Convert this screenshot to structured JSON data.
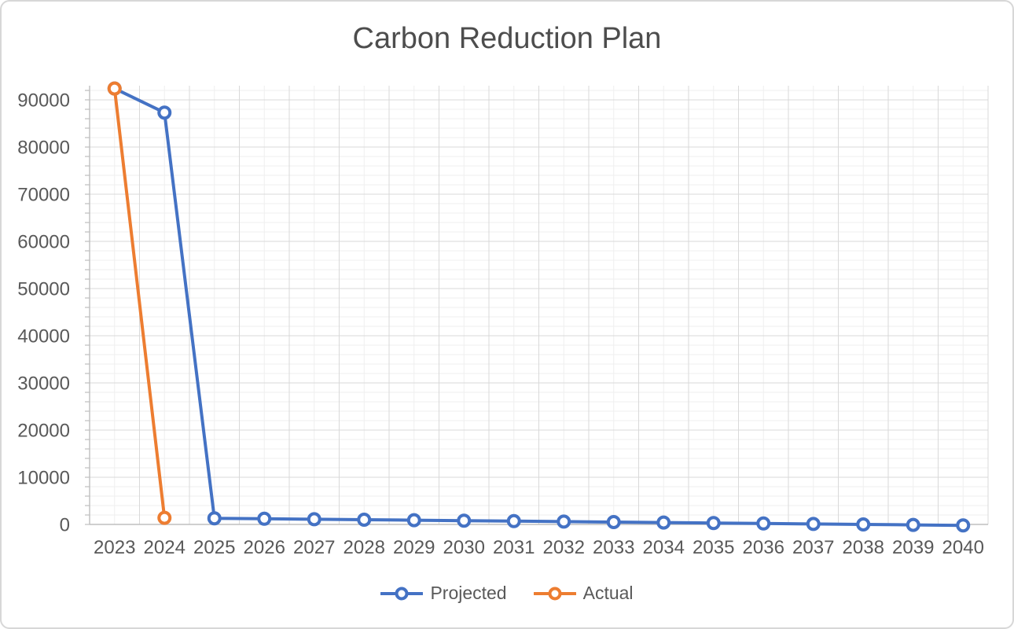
{
  "chart_data": {
    "type": "line",
    "title": "Carbon Reduction Plan",
    "categories": [
      "2023",
      "2024",
      "2025",
      "2026",
      "2027",
      "2028",
      "2029",
      "2030",
      "2031",
      "2032",
      "2033",
      "2034",
      "2035",
      "2036",
      "2037",
      "2038",
      "2039",
      "2040"
    ],
    "series": [
      {
        "name": "Projected",
        "color": "#4472C4",
        "values": [
          92400,
          87300,
          1300,
          1200,
          1100,
          1000,
          900,
          800,
          700,
          600,
          500,
          400,
          300,
          200,
          100,
          0,
          -100,
          -200
        ]
      },
      {
        "name": "Actual",
        "color": "#ED7D31",
        "values": [
          92400,
          1400,
          null,
          null,
          null,
          null,
          null,
          null,
          null,
          null,
          null,
          null,
          null,
          null,
          null,
          null,
          null,
          null
        ]
      }
    ],
    "xlabel": "",
    "ylabel": "",
    "ylim": [
      0,
      93000
    ],
    "y_tick_labels": [
      "0",
      "10000",
      "20000",
      "30000",
      "40000",
      "50000",
      "60000",
      "70000",
      "80000",
      "90000"
    ],
    "y_major_step": 10000,
    "y_minor_step": 2000,
    "grid": "major-and-minor",
    "legend_position": "bottom-center",
    "colors": {
      "axis_line": "#bfbfbf",
      "grid_major": "#d9d9d9",
      "grid_minor": "#efefef",
      "tick": "#bfbfbf",
      "axis_text": "#595959",
      "title_text": "#4d4d4d",
      "background": "#ffffff"
    }
  }
}
